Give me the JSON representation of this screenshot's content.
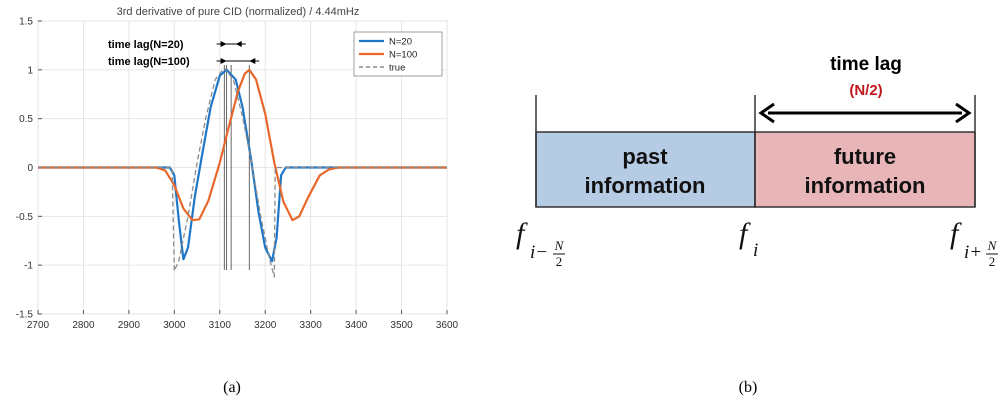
{
  "panels": {
    "a": {
      "caption": "(a)"
    },
    "b": {
      "caption": "(b)"
    }
  },
  "chart_data": {
    "type": "line",
    "title": "3rd derivative of pure CID (normalized) / 4.44mHz",
    "xlabel": "",
    "ylabel": "",
    "xlim": [
      2700,
      3600
    ],
    "ylim": [
      -1.5,
      1.5
    ],
    "xticks": [
      2700,
      2800,
      2900,
      3000,
      3100,
      3200,
      3300,
      3400,
      3500,
      3600
    ],
    "yticks": [
      -1.5,
      -1,
      -0.5,
      0,
      0.5,
      1,
      1.5
    ],
    "ytick_labels": [
      "-1.5",
      "-1",
      "-0.5",
      "0",
      "0.5",
      "1",
      "1.5"
    ],
    "grid": true,
    "legend_position": "top-right",
    "series": [
      {
        "name": "N=20",
        "color": "#1f77c8",
        "style": "solid",
        "points": [
          [
            2700,
            0
          ],
          [
            2990,
            0
          ],
          [
            3000,
            -0.08
          ],
          [
            3010,
            -0.55
          ],
          [
            3020,
            -0.94
          ],
          [
            3030,
            -0.82
          ],
          [
            3045,
            -0.3
          ],
          [
            3060,
            0.1
          ],
          [
            3080,
            0.62
          ],
          [
            3100,
            0.94
          ],
          [
            3115,
            1.0
          ],
          [
            3135,
            0.9
          ],
          [
            3150,
            0.62
          ],
          [
            3170,
            0.05
          ],
          [
            3185,
            -0.45
          ],
          [
            3200,
            -0.82
          ],
          [
            3215,
            -0.96
          ],
          [
            3225,
            -0.72
          ],
          [
            3235,
            -0.08
          ],
          [
            3245,
            0
          ],
          [
            3600,
            0
          ]
        ]
      },
      {
        "name": "N=100",
        "color": "#e8672a",
        "style": "solid",
        "points": [
          [
            2700,
            0
          ],
          [
            2960,
            0
          ],
          [
            2980,
            -0.03
          ],
          [
            3000,
            -0.18
          ],
          [
            3020,
            -0.42
          ],
          [
            3040,
            -0.54
          ],
          [
            3055,
            -0.53
          ],
          [
            3075,
            -0.34
          ],
          [
            3100,
            0.05
          ],
          [
            3120,
            0.42
          ],
          [
            3140,
            0.78
          ],
          [
            3155,
            0.96
          ],
          [
            3165,
            1.0
          ],
          [
            3180,
            0.9
          ],
          [
            3200,
            0.55
          ],
          [
            3220,
            0.05
          ],
          [
            3240,
            -0.35
          ],
          [
            3260,
            -0.54
          ],
          [
            3275,
            -0.5
          ],
          [
            3295,
            -0.3
          ],
          [
            3320,
            -0.08
          ],
          [
            3340,
            -0.02
          ],
          [
            3360,
            0
          ],
          [
            3600,
            0
          ]
        ]
      },
      {
        "name": "true",
        "color": "#8a8a8a",
        "style": "dashed",
        "points": [
          [
            2700,
            0
          ],
          [
            2995,
            0
          ],
          [
            3000,
            -1.06
          ],
          [
            3010,
            -0.95
          ],
          [
            3030,
            -0.5
          ],
          [
            3050,
            0.05
          ],
          [
            3070,
            0.52
          ],
          [
            3090,
            0.9
          ],
          [
            3110,
            1.02
          ],
          [
            3130,
            0.9
          ],
          [
            3150,
            0.52
          ],
          [
            3170,
            0.05
          ],
          [
            3190,
            -0.5
          ],
          [
            3210,
            -0.95
          ],
          [
            3220,
            -1.12
          ],
          [
            3222,
            0
          ],
          [
            3600,
            0
          ]
        ]
      }
    ],
    "annotations": [
      {
        "text": "time lag(N=20)",
        "x_from": 3115,
        "x_to": 3135
      },
      {
        "text": "time lag(N=100)",
        "x_from": 3115,
        "x_to": 3165
      }
    ],
    "reference_lines_x": [
      3110,
      3115,
      3125,
      3165
    ]
  },
  "diagram": {
    "time_lag_title": "time lag",
    "time_lag_sub": "(N/2)",
    "time_lag_sub_color": "#c0181f",
    "past_label_line1": "past",
    "past_label_line2": "information",
    "future_label_line1": "future",
    "future_label_line2": "information",
    "past_color": "#b6cce4",
    "future_color": "#e8b5b9",
    "label_left_base": "f",
    "label_left_sub_prefix": "i−",
    "label_left_frac_num": "N",
    "label_left_frac_den": "2",
    "label_mid_base": "f",
    "label_mid_sub": "i",
    "label_right_base": "f",
    "label_right_sub_prefix": "i+",
    "label_right_frac_num": "N",
    "label_right_frac_den": "2"
  }
}
